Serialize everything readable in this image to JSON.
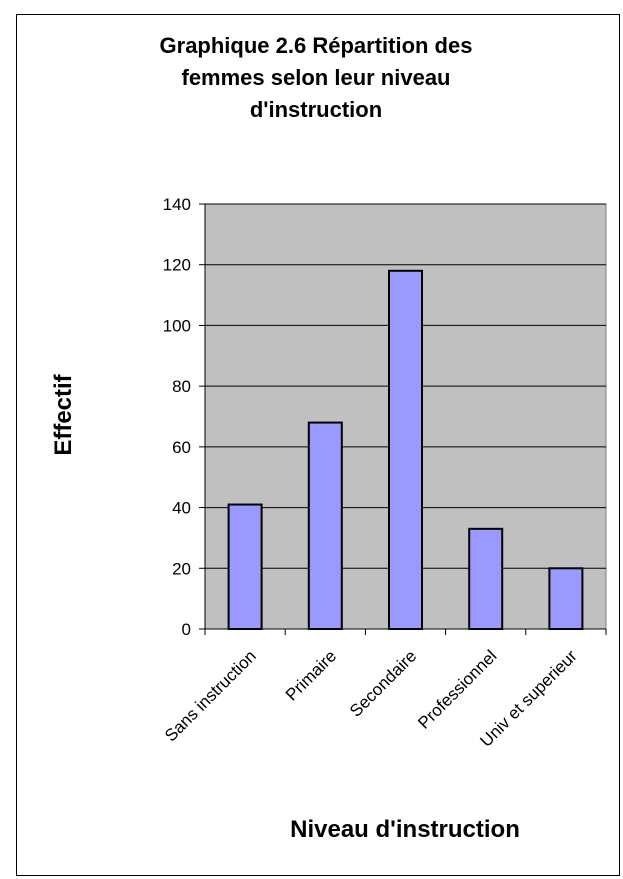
{
  "chart_data": {
    "type": "bar",
    "title_lines": [
      "Graphique 2.6 Répartition des",
      "femmes selon leur niveau",
      "d'instruction"
    ],
    "categories": [
      "Sans instruction",
      "Primaire",
      "Secondaire",
      "Professionnel",
      "Univ et superieur"
    ],
    "values": [
      41,
      68,
      118,
      33,
      20
    ],
    "xlabel": "Niveau d'instruction",
    "ylabel": "Effectif",
    "ylim": [
      0,
      140
    ],
    "yticks": [
      "0",
      "20",
      "40",
      "60",
      "80",
      "100",
      "120",
      "140"
    ],
    "grid": true,
    "legend": "none",
    "colors": {
      "bar_fill": "#9999ff",
      "bar_stroke": "#000000",
      "plot_background": "#c0c0c0",
      "gridline": "#000000"
    }
  }
}
